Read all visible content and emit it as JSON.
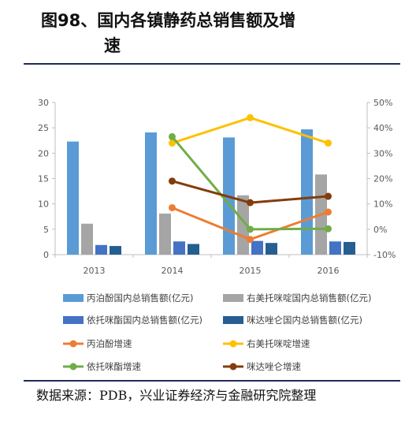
{
  "title": {
    "line1": "图98、国内各镇静药总销售额及增",
    "line2": "速"
  },
  "source": "数据来源：PDB，兴业证券经济与金融研究院整理",
  "chart_data": {
    "type": "bar+line",
    "categories": [
      "2013",
      "2014",
      "2015",
      "2016"
    ],
    "left_axis": {
      "ylim": [
        0,
        30
      ],
      "ticks": [
        "0",
        "5",
        "10",
        "15",
        "20",
        "25",
        "30"
      ]
    },
    "right_axis": {
      "ylim": [
        -10,
        50
      ],
      "ticks": [
        "-10%",
        "0%",
        "10%",
        "20%",
        "30%",
        "40%",
        "50%"
      ]
    },
    "bar_series": [
      {
        "name": "丙泊酚国内总销售额(亿元)",
        "color": "#5b9bd5",
        "values": [
          22.3,
          24.1,
          23.1,
          24.7
        ]
      },
      {
        "name": "右美托咪啶国内总销售额(亿元)",
        "color": "#a5a5a5",
        "values": [
          6.1,
          8.1,
          11.7,
          15.8
        ]
      },
      {
        "name": "依托咪酯国内总销售额(亿元)",
        "color": "#4472c4",
        "values": [
          1.9,
          2.6,
          2.7,
          2.6
        ]
      },
      {
        "name": "咪达唑仑国内总销售额(亿元)",
        "color": "#255e91",
        "values": [
          1.7,
          2.1,
          2.3,
          2.5
        ]
      }
    ],
    "line_series": [
      {
        "name": "丙泊酚增速",
        "color": "#ed7d31",
        "values": [
          null,
          8.5,
          -4.0,
          6.8
        ]
      },
      {
        "name": "右美托咪啶增速",
        "color": "#ffc000",
        "values": [
          null,
          34.0,
          44.0,
          34.0
        ]
      },
      {
        "name": "依托咪酯增速",
        "color": "#70ad47",
        "values": [
          null,
          36.5,
          0.0,
          0.2
        ]
      },
      {
        "name": "咪达唑仑增速",
        "color": "#843c0c",
        "values": [
          null,
          19.0,
          10.5,
          13.0
        ]
      }
    ],
    "legend_placement": "bottom"
  }
}
